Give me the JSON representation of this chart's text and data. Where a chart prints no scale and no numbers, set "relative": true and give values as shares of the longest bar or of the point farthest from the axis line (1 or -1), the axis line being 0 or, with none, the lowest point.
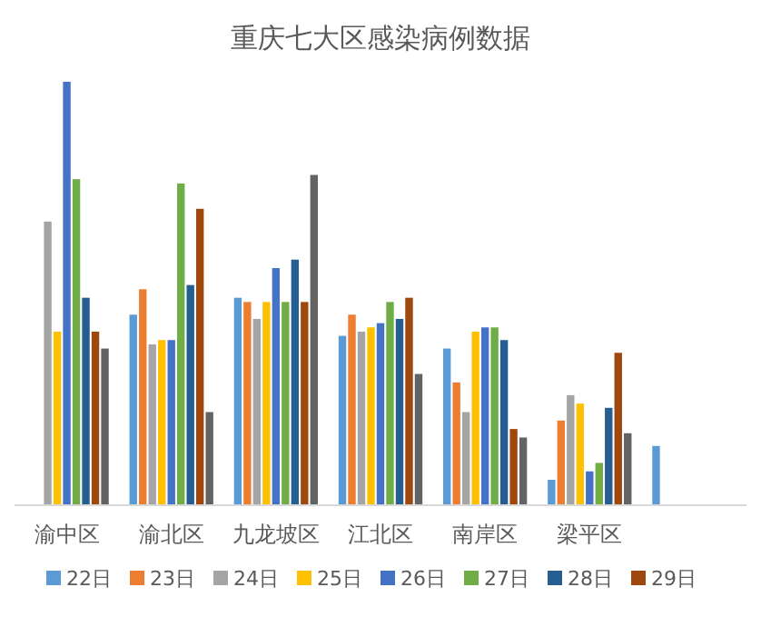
{
  "chart_data": {
    "type": "bar",
    "title": "重庆七大区感染病例数据",
    "relative": true,
    "legend": "bottom",
    "categories": [
      "渝中区",
      "渝北区",
      "九龙坡区",
      "江北区",
      "南岸区",
      "梁平区",
      null
    ],
    "series": [
      {
        "name": "22日",
        "color": "#5b9bd5",
        "values": [
          null,
          0.45,
          0.49,
          0.4,
          0.37,
          0.06,
          0.14
        ]
      },
      {
        "name": "23日",
        "color": "#ed7d31",
        "values": [
          null,
          0.51,
          0.48,
          0.45,
          0.29,
          0.2,
          null
        ]
      },
      {
        "name": "24日",
        "color": "#a5a5a5",
        "values": [
          0.67,
          0.38,
          0.44,
          0.41,
          0.22,
          0.26,
          null
        ]
      },
      {
        "name": "25日",
        "color": "#ffc000",
        "values": [
          0.41,
          0.39,
          0.48,
          0.42,
          0.41,
          0.24,
          null
        ]
      },
      {
        "name": "26日",
        "color": "#4472c4",
        "values": [
          1,
          0.39,
          0.56,
          0.43,
          0.42,
          0.08,
          null
        ]
      },
      {
        "name": "27日",
        "color": "#70ad47",
        "values": [
          0.77,
          0.76,
          0.48,
          0.48,
          0.42,
          0.1,
          null
        ]
      },
      {
        "name": "28日",
        "color": "#255e91",
        "values": [
          0.49,
          0.52,
          0.58,
          0.44,
          0.39,
          0.23,
          null
        ]
      },
      {
        "name": "29日",
        "color": "#9e480e",
        "values": [
          0.41,
          0.7,
          0.48,
          0.49,
          0.18,
          0.36,
          null
        ]
      },
      {
        "color": "#636363",
        "values": [
          0.37,
          0.22,
          0.78,
          0.31,
          0.16,
          0.17,
          null
        ]
      }
    ]
  }
}
